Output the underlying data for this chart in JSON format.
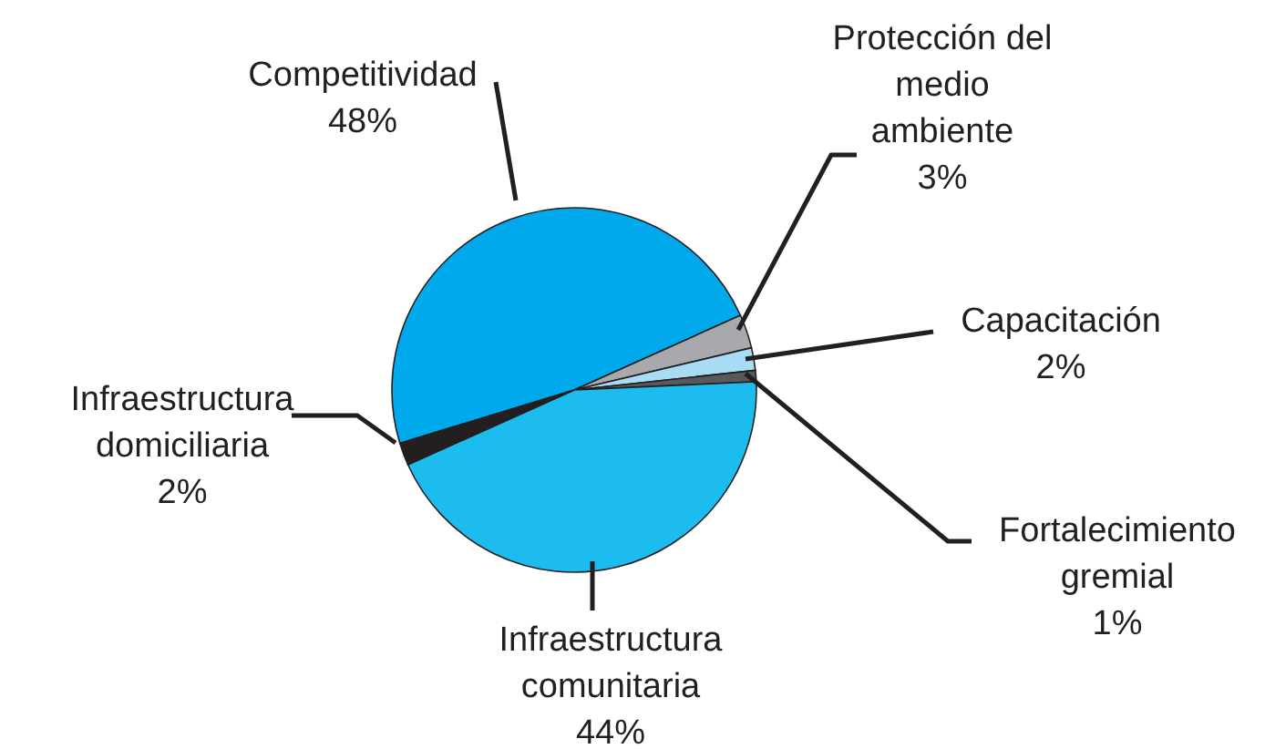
{
  "chart_data": {
    "type": "pie",
    "categories": [
      "Competitividad",
      "Protección del medio ambiente",
      "Capacitación",
      "Fortalecimiento gremial",
      "Infraestructura comunitaria",
      "Infraestructura domiciliaria"
    ],
    "values": [
      48,
      3,
      2,
      1,
      44,
      2
    ],
    "value_labels": [
      "48%",
      "3%",
      "2%",
      "1%",
      "44%",
      "2%"
    ],
    "colors": [
      "#00a8ec",
      "#a7a9ac",
      "#a8dcf5",
      "#58595b",
      "#1dbcee",
      "#231f20"
    ],
    "legend": false
  }
}
